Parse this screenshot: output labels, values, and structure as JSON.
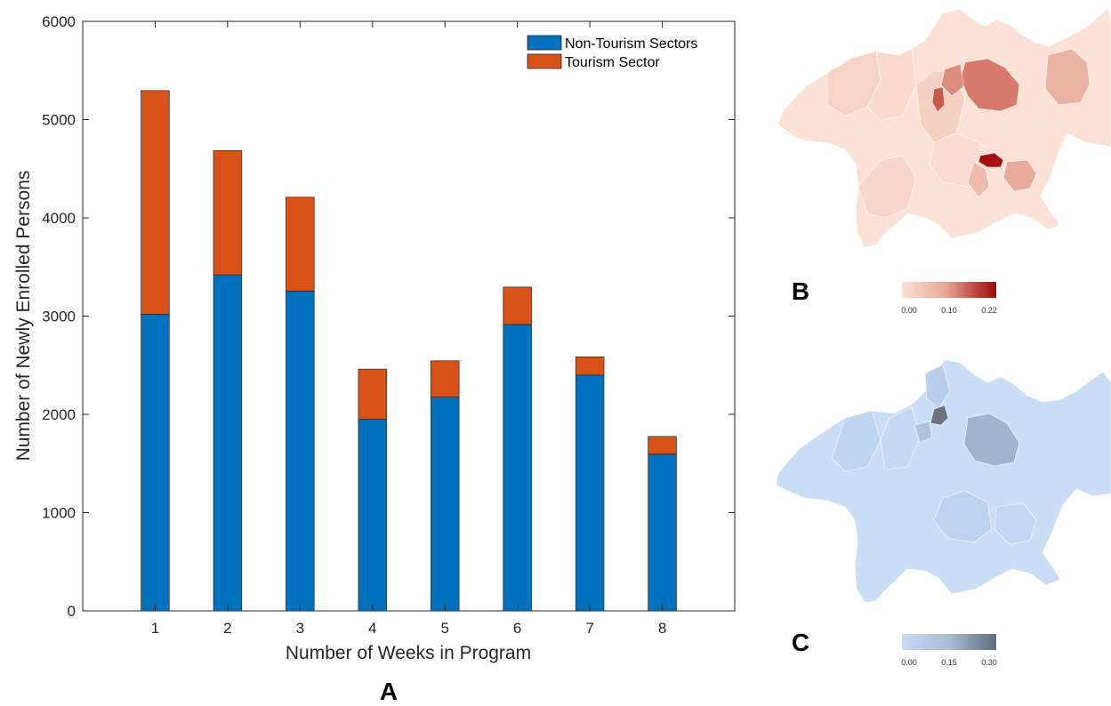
{
  "chart_data": [
    {
      "type": "bar",
      "stacked": true,
      "panel": "A",
      "categories": [
        "1",
        "2",
        "3",
        "4",
        "5",
        "6",
        "7",
        "8"
      ],
      "series": [
        {
          "name": "Non-Tourism Sectors",
          "color": "#0072BD",
          "values": [
            3020,
            3420,
            3255,
            1950,
            2175,
            2915,
            2400,
            1595
          ]
        },
        {
          "name": "Tourism Sector",
          "color": "#D95319",
          "values": [
            2275,
            1265,
            955,
            510,
            370,
            380,
            185,
            180
          ]
        }
      ],
      "xlabel": "Number of Weeks in Program",
      "ylabel": "Number of Newly Enrolled Persons",
      "ylim": [
        0,
        6000
      ],
      "yticks": [
        "0",
        "1000",
        "2000",
        "3000",
        "4000",
        "5000",
        "6000"
      ],
      "legend_position": "top-right",
      "grid": false
    },
    {
      "type": "choropleth",
      "panel": "B",
      "colorbar": {
        "ticks": [
          "0.00",
          "0.10",
          "0.22"
        ],
        "min_color": "#fde0d4",
        "max_color": "#9e0a0a"
      }
    },
    {
      "type": "choropleth",
      "panel": "C",
      "colorbar": {
        "ticks": [
          "0.00",
          "0.15",
          "0.30"
        ],
        "min_color": "#c6dcf5",
        "max_color": "#5f6d80"
      }
    }
  ],
  "colors": {
    "map_b_base": "#fbe1d6",
    "map_b_mid": "#d77a6e",
    "map_b_high": "#a50f0f",
    "map_c_base": "#c9def6",
    "map_c_mid": "#9fb4cd",
    "map_c_high": "#6d737c"
  }
}
